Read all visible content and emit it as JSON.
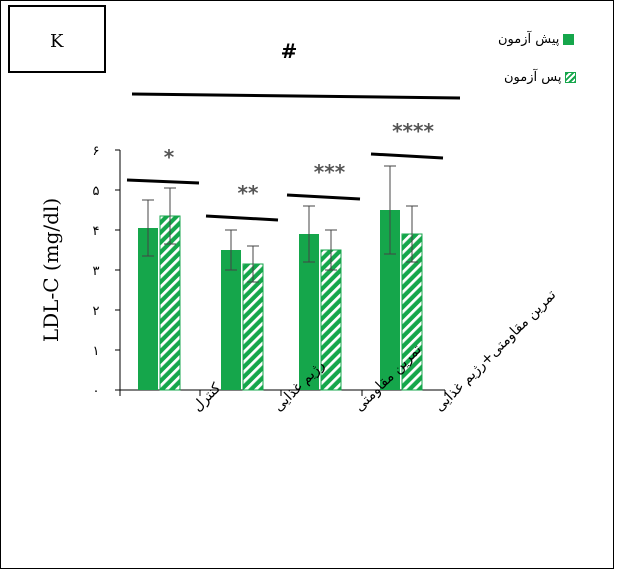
{
  "panel_label": "K",
  "colors": {
    "bar": "#15a64b",
    "error_bar": "#444444",
    "significance_mark": "#555555"
  },
  "chart_data": {
    "type": "bar",
    "ylabel": "LDL-C (mg/dl)",
    "ylim": [
      0,
      6
    ],
    "yticks": [
      "۰",
      "۱",
      "۲",
      "۳",
      "۴",
      "۵",
      "۶"
    ],
    "categories": [
      "کنترل",
      "رژیم غذایی",
      "تمرین مقاومتی",
      "تمرین مقاومتی+رژیم غذایی"
    ],
    "series": [
      {
        "name": "پیش آزمون",
        "pattern": "solid",
        "values": [
          4.05,
          3.5,
          3.9,
          4.5
        ],
        "errors": [
          0.7,
          0.5,
          0.7,
          1.1
        ]
      },
      {
        "name": "پس آزمون",
        "pattern": "hatched",
        "values": [
          4.35,
          3.15,
          3.5,
          3.9
        ],
        "errors": [
          0.7,
          0.45,
          0.5,
          0.7
        ]
      }
    ],
    "group_significance": [
      "*",
      "**",
      "***",
      "****"
    ],
    "overall_significance": "#",
    "legend_position": "top-right",
    "grid": false
  }
}
